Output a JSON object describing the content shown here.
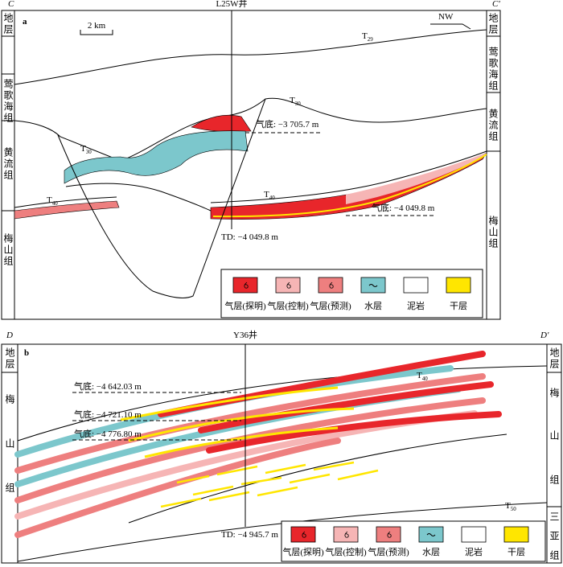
{
  "panels": [
    {
      "label": "a",
      "left_end": "C",
      "right_end": "C'",
      "well": "L25W井",
      "scale": "2 km",
      "direction": "NW",
      "left_column": [
        "地层",
        "莺歌海组",
        "黄流组",
        "梅山组"
      ],
      "right_column": [
        "地层",
        "莺歌海组",
        "黄流组",
        "梅山组"
      ],
      "horizons": [
        {
          "letter": "T",
          "sub": "29"
        },
        {
          "letter": "T",
          "sub": "30"
        },
        {
          "letter": "T",
          "sub": "30"
        },
        {
          "letter": "T",
          "sub": "40"
        },
        {
          "letter": "T",
          "sub": "40"
        }
      ],
      "annotations": [
        "气底: −3 705.7 m",
        "气底: −4 049.8 m",
        "TD: −4 049.8 m"
      ],
      "legend": [
        "气层(探明)",
        "气层(控制)",
        "气层(预测)",
        "水层",
        "泥岩",
        "干层"
      ]
    },
    {
      "label": "b",
      "left_end": "D",
      "right_end": "D'",
      "well": "Y36井",
      "left_column": [
        "地层",
        "梅",
        "山",
        "组"
      ],
      "right_column": [
        "地层",
        "梅",
        "山",
        "组",
        "三",
        "亚",
        "组"
      ],
      "horizons": [
        {
          "letter": "T",
          "sub": "40"
        },
        {
          "letter": "T",
          "sub": "50"
        }
      ],
      "annotations": [
        "气底: −4 642.03 m",
        "气底: −4 721.10 m",
        "气底: −4 776.80 m",
        "TD: −4 945.7 m"
      ],
      "legend": [
        "气层(探明)",
        "气层(控制)",
        "气层(预测)",
        "水层",
        "泥岩",
        "干层"
      ]
    }
  ]
}
